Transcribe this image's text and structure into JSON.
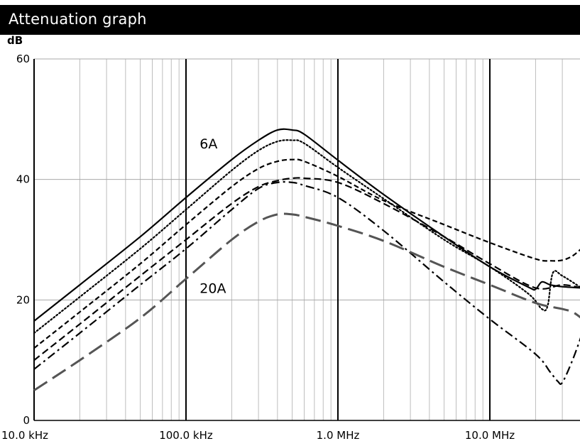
{
  "header": {
    "title": "Attenuation graph"
  },
  "chart_data": {
    "type": "line",
    "title": "Attenuation graph",
    "ylabel": "dB",
    "xlabel": "",
    "x_scale": "log",
    "x_unit": "Hz",
    "xlim": [
      10000,
      40000000
    ],
    "ylim": [
      0,
      60
    ],
    "x_ticks": [
      {
        "value": 10000,
        "label": "10.0 kHz"
      },
      {
        "value": 100000,
        "label": "100.0 kHz"
      },
      {
        "value": 1000000,
        "label": "1.0 MHz"
      },
      {
        "value": 10000000,
        "label": "10.0 MHz"
      }
    ],
    "y_ticks": [
      {
        "value": 0,
        "label": "0"
      },
      {
        "value": 20,
        "label": "20"
      },
      {
        "value": 40,
        "label": "40"
      },
      {
        "value": 60,
        "label": "60"
      }
    ],
    "grid": true,
    "annotations": [
      {
        "text": "6A",
        "x": 140000,
        "y": 46
      },
      {
        "text": "20A",
        "x": 140000,
        "y": 22
      }
    ],
    "series": [
      {
        "style": "solid",
        "color": "#000000",
        "x": [
          10000,
          20000,
          50000,
          100000,
          200000,
          300000,
          400000,
          500000,
          600000,
          1000000,
          2000000,
          5000000,
          10000000,
          18000000,
          20000000,
          22000000,
          25000000,
          30000000,
          40000000
        ],
        "y": [
          16.5,
          22.5,
          30.5,
          37,
          43.3,
          46.5,
          48.2,
          48.2,
          47.5,
          43.2,
          37.5,
          30.5,
          25.5,
          22.1,
          21.8,
          23,
          22.5,
          22.2,
          22
        ]
      },
      {
        "style": "dotted",
        "color": "#000000",
        "x": [
          10000,
          20000,
          50000,
          100000,
          200000,
          300000,
          400000,
          500000,
          600000,
          1000000,
          2000000,
          5000000,
          10000000,
          18000000,
          22000000,
          24000000,
          26000000,
          30000000,
          40000000
        ],
        "y": [
          14.5,
          20.5,
          28.5,
          35,
          41.5,
          44.8,
          46.3,
          46.5,
          46,
          42,
          36.8,
          30,
          25.5,
          21,
          18.5,
          19,
          24.5,
          24,
          22
        ]
      },
      {
        "style": "short-dash",
        "color": "#000000",
        "x": [
          10000,
          20000,
          50000,
          100000,
          200000,
          300000,
          400000,
          500000,
          600000,
          1000000,
          2000000,
          5000000,
          10000000,
          20000000,
          25000000,
          30000000,
          35000000,
          40000000
        ],
        "y": [
          12,
          18,
          26,
          32.5,
          38.8,
          41.8,
          43,
          43.3,
          43,
          40.5,
          36.5,
          32.5,
          29.5,
          26.8,
          26.5,
          26.6,
          27.3,
          28.5
        ]
      },
      {
        "style": "dash",
        "color": "#000000",
        "x": [
          10000,
          20000,
          50000,
          100000,
          200000,
          300000,
          400000,
          500000,
          600000,
          1000000,
          2000000,
          5000000,
          10000000,
          20000000,
          30000000,
          40000000
        ],
        "y": [
          10,
          16,
          24,
          30,
          36,
          38.8,
          39.8,
          40.2,
          40.2,
          39.5,
          36,
          30.5,
          26,
          22,
          22.5,
          22
        ]
      },
      {
        "style": "dash-dot",
        "color": "#000000",
        "x": [
          10000,
          20000,
          50000,
          100000,
          200000,
          300000,
          400000,
          500000,
          600000,
          1000000,
          2000000,
          5000000,
          10000000,
          20000000,
          25000000,
          28000000,
          30000000,
          35000000,
          40000000
        ],
        "y": [
          8.5,
          14.5,
          22.5,
          28.5,
          35,
          38.5,
          39.5,
          39.5,
          39,
          37,
          31.5,
          23,
          16.8,
          11,
          8,
          6.5,
          6.3,
          10,
          14
        ]
      },
      {
        "style": "long-dash",
        "color": "#555555",
        "x": [
          10000,
          20000,
          50000,
          100000,
          200000,
          300000,
          400000,
          500000,
          600000,
          1000000,
          2000000,
          5000000,
          10000000,
          20000000,
          30000000,
          35000000,
          40000000
        ],
        "y": [
          5,
          10,
          17,
          23.5,
          30,
          33,
          34.2,
          34.2,
          33.8,
          32.3,
          29.8,
          25.5,
          22.5,
          19.5,
          18.5,
          18,
          17
        ]
      }
    ]
  }
}
